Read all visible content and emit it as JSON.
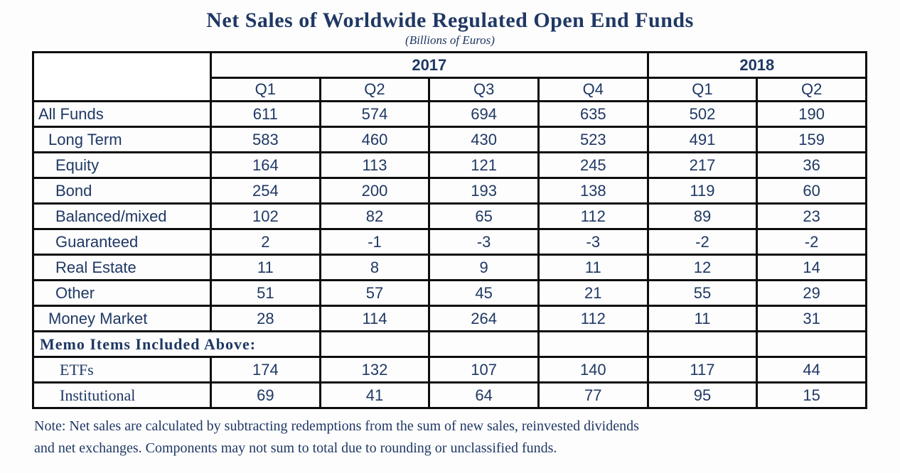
{
  "title": "Net Sales of Worldwide Regulated Open End Funds",
  "subtitle": "(Billions of Euros)",
  "colors": {
    "text": "#1f3864",
    "border": "#0d0d0d",
    "background": "#fdfdfd"
  },
  "table": {
    "year_groups": [
      {
        "label": "2017",
        "quarters": [
          "Q1",
          "Q2",
          "Q3",
          "Q4"
        ]
      },
      {
        "label": "2018",
        "quarters": [
          "Q1",
          "Q2"
        ]
      }
    ],
    "rows": [
      {
        "label": "All Funds",
        "indent": 0,
        "style": "sans",
        "memo": false,
        "values": [
          "611",
          "574",
          "694",
          "635",
          "502",
          "190"
        ]
      },
      {
        "label": "Long Term",
        "indent": 1,
        "style": "sans",
        "memo": false,
        "values": [
          "583",
          "460",
          "430",
          "523",
          "491",
          "159"
        ]
      },
      {
        "label": "Equity",
        "indent": 2,
        "style": "sans",
        "memo": false,
        "values": [
          "164",
          "113",
          "121",
          "245",
          "217",
          "36"
        ]
      },
      {
        "label": "Bond",
        "indent": 2,
        "style": "sans",
        "memo": false,
        "values": [
          "254",
          "200",
          "193",
          "138",
          "119",
          "60"
        ]
      },
      {
        "label": "Balanced/mixed",
        "indent": 2,
        "style": "sans",
        "memo": false,
        "values": [
          "102",
          "82",
          "65",
          "112",
          "89",
          "23"
        ]
      },
      {
        "label": "Guaranteed",
        "indent": 2,
        "style": "sans",
        "memo": false,
        "values": [
          "2",
          "-1",
          "-3",
          "-3",
          "-2",
          "-2"
        ]
      },
      {
        "label": "Real Estate",
        "indent": 2,
        "style": "sans",
        "memo": false,
        "values": [
          "11",
          "8",
          "9",
          "11",
          "12",
          "14"
        ]
      },
      {
        "label": "Other",
        "indent": 2,
        "style": "sans",
        "memo": false,
        "values": [
          "51",
          "57",
          "45",
          "21",
          "55",
          "29"
        ]
      },
      {
        "label": "Money Market",
        "indent": 1,
        "style": "sans",
        "memo": false,
        "values": [
          "28",
          "114",
          "264",
          "112",
          "11",
          "31"
        ]
      },
      {
        "label": "Memo Items Included Above:",
        "indent": 0,
        "style": "serif-bold",
        "memo": true,
        "values": [
          "",
          "",
          "",
          "",
          ""
        ]
      },
      {
        "label": "ETFs",
        "indent": 3,
        "style": "serif",
        "memo": false,
        "values": [
          "174",
          "132",
          "107",
          "140",
          "117",
          "44"
        ]
      },
      {
        "label": "Institutional",
        "indent": 3,
        "style": "serif",
        "memo": false,
        "values": [
          "69",
          "41",
          "64",
          "77",
          "95",
          "15"
        ]
      }
    ]
  },
  "note": {
    "line1": "Note: Net sales are calculated by subtracting redemptions from the sum of new sales, reinvested dividends",
    "line2": "and net exchanges. Components may not sum to total due to rounding or unclassified funds."
  }
}
